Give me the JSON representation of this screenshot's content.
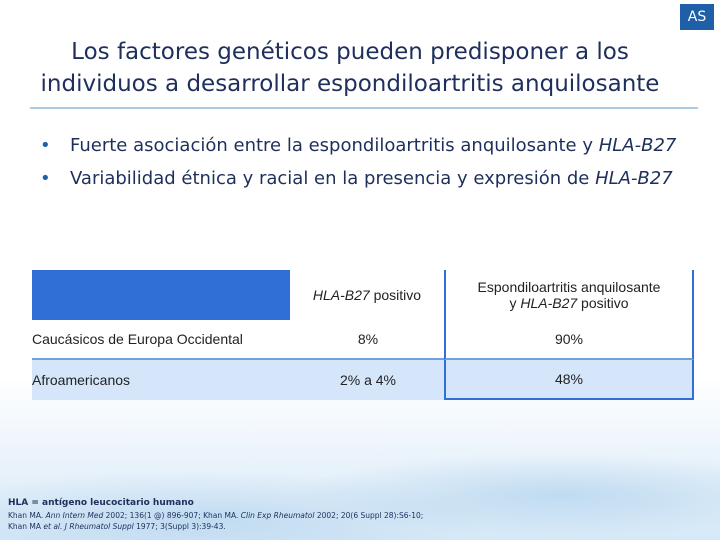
{
  "badge": "AS",
  "title": {
    "line1": "Los factores genéticos pueden predisponer a los",
    "line2": "individuos a desarrollar espondiloartritis anquilosante"
  },
  "bullets": [
    {
      "text": "Fuerte asociación entre la espondiloartritis anquilosante y ",
      "italic": "HLA-B27"
    },
    {
      "text": "Variabilidad étnica y racial en la presencia y expresión de ",
      "italic": "HLA-B27"
    }
  ],
  "table": {
    "header": {
      "col1_italic": "HLA-B27",
      "col1_rest": " positivo",
      "col2_line1": "Espondiloartritis anquilosante",
      "col2_prefix": "y ",
      "col2_italic": "HLA-B27",
      "col2_rest": " positivo"
    },
    "rows": [
      {
        "label": "Caucásicos de Europa Occidental",
        "c1": "8%",
        "c2": "90%"
      },
      {
        "label": "Afroamericanos",
        "c1": "2% a 4%",
        "c2": "48%"
      }
    ]
  },
  "footer": {
    "abbreviation": "HLA = antígeno leucocitario humano",
    "ref_line1_a": "Khan MA. ",
    "ref_line1_b": "Ann Intern Med",
    "ref_line1_c": " 2002; 136(1 @) 896-907; Khan MA. ",
    "ref_line1_d": "Clin Exp Rheumatol",
    "ref_line1_e": " 2002; 20(6 Suppl 28):S6-10;",
    "ref_line2_a": "Khan MA ",
    "ref_line2_b": "et al. J Rheumatol Suppl",
    "ref_line2_c": " 1977; 3(Suppl 3):39-43."
  },
  "colors": {
    "title": "#1e2f5c",
    "accent": "#1f5fa8",
    "table_header": "#2f6fd6",
    "table_stripe": "#d5e6fa"
  }
}
